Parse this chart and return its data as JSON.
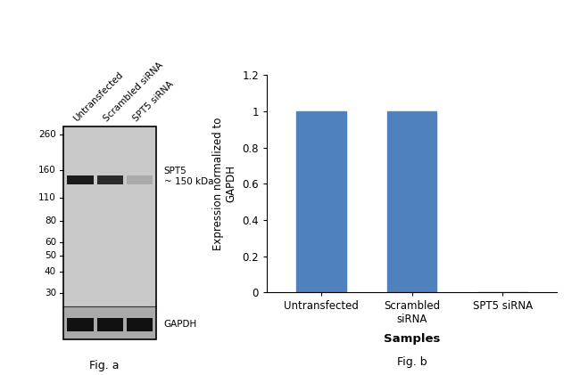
{
  "fig_width": 6.5,
  "fig_height": 4.21,
  "dpi": 100,
  "background_color": "#ffffff",
  "wb_panel": {
    "gel_bg": "#c8c8c8",
    "gel_border_color": "#000000",
    "label_spt5": "SPT5\n~ 150 kDa",
    "label_gapdh": "GAPDH",
    "fig_label": "Fig. a",
    "col_labels": [
      "Untransfected",
      "Scrambled siRNA",
      "SPT5 siRNA"
    ],
    "mw_markers": [
      260,
      160,
      110,
      80,
      60,
      50,
      40,
      30
    ],
    "spt5_band_colors": [
      "#1a1a1a",
      "#2a2a2a",
      "#aaaaaa"
    ],
    "gapdh_band_colors": [
      "#111111",
      "#111111",
      "#111111"
    ],
    "gapdh_section_bg": "#888888"
  },
  "bar_panel": {
    "categories": [
      "Untransfected",
      "Scrambled\nsiRNA",
      "SPT5 siRNA"
    ],
    "values": [
      1.0,
      1.0,
      0.0
    ],
    "bar_color": "#4f81bd",
    "bar_width": 0.55,
    "ylim": [
      0,
      1.2
    ],
    "yticks": [
      0,
      0.2,
      0.4,
      0.6,
      0.8,
      1.0,
      1.2
    ],
    "ytick_labels": [
      "0",
      "0.2",
      "0.4",
      "0.6",
      "0.8",
      "1",
      "1.2"
    ],
    "ylabel": "Expression normalized to\nGAPDH",
    "xlabel": "Samples",
    "xlabel_fontweight": "bold",
    "fig_label": "Fig. b",
    "ylabel_fontsize": 8.5,
    "xlabel_fontsize": 9.5,
    "tick_fontsize": 8.5
  }
}
